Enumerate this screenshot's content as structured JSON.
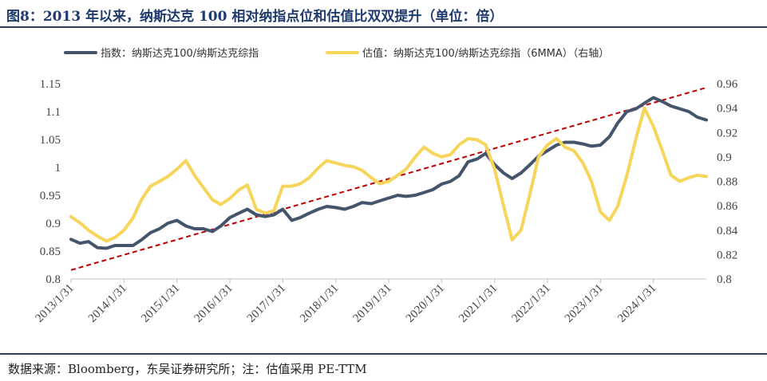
{
  "title": "图8：2013 年以来，纳斯达克 100 相对纳指点位和估值比双双提升（单位：倍）",
  "source": "数据来源：Bloomberg，东吴证券研究所；注：估值采用 PE-TTM",
  "chart_data": {
    "type": "line",
    "y_left": {
      "min": 0.8,
      "max": 1.15,
      "ticks": [
        "0.8",
        "0.85",
        "0.9",
        "0.95",
        "1",
        "1.05",
        "1.1",
        "1.15"
      ]
    },
    "y_right": {
      "min": 0.8,
      "max": 0.96,
      "ticks": [
        "0.8",
        "0.82",
        "0.84",
        "0.86",
        "0.88",
        "0.9",
        "0.92",
        "0.94",
        "0.96"
      ]
    },
    "x_range": [
      2013.0,
      2025.0
    ],
    "x_ticks": [
      "2013/1/31",
      "2014/1/31",
      "2015/1/31",
      "2016/1/31",
      "2017/1/31",
      "2018/1/31",
      "2019/1/31",
      "2020/1/31",
      "2021/1/31",
      "2022/1/31",
      "2023/1/31",
      "2024/1/31"
    ],
    "grid": false,
    "legend_position": "top",
    "series": [
      {
        "name": "指数：纳斯达克100/纳斯达克综指",
        "axis": "left",
        "color": "#44546a",
        "points": [
          [
            2013.0,
            0.871
          ],
          [
            2013.17,
            0.864
          ],
          [
            2013.33,
            0.867
          ],
          [
            2013.5,
            0.856
          ],
          [
            2013.67,
            0.855
          ],
          [
            2013.83,
            0.86
          ],
          [
            2014.0,
            0.86
          ],
          [
            2014.17,
            0.86
          ],
          [
            2014.33,
            0.87
          ],
          [
            2014.5,
            0.883
          ],
          [
            2014.67,
            0.89
          ],
          [
            2014.83,
            0.9
          ],
          [
            2015.0,
            0.905
          ],
          [
            2015.17,
            0.895
          ],
          [
            2015.33,
            0.89
          ],
          [
            2015.5,
            0.89
          ],
          [
            2015.67,
            0.885
          ],
          [
            2015.83,
            0.895
          ],
          [
            2016.0,
            0.91
          ],
          [
            2016.17,
            0.918
          ],
          [
            2016.33,
            0.925
          ],
          [
            2016.5,
            0.915
          ],
          [
            2016.67,
            0.912
          ],
          [
            2016.83,
            0.915
          ],
          [
            2017.0,
            0.925
          ],
          [
            2017.17,
            0.905
          ],
          [
            2017.33,
            0.91
          ],
          [
            2017.5,
            0.918
          ],
          [
            2017.67,
            0.925
          ],
          [
            2017.83,
            0.93
          ],
          [
            2018.0,
            0.928
          ],
          [
            2018.17,
            0.925
          ],
          [
            2018.33,
            0.93
          ],
          [
            2018.5,
            0.937
          ],
          [
            2018.67,
            0.935
          ],
          [
            2018.83,
            0.94
          ],
          [
            2019.0,
            0.945
          ],
          [
            2019.17,
            0.95
          ],
          [
            2019.33,
            0.948
          ],
          [
            2019.5,
            0.95
          ],
          [
            2019.67,
            0.955
          ],
          [
            2019.83,
            0.96
          ],
          [
            2020.0,
            0.97
          ],
          [
            2020.17,
            0.975
          ],
          [
            2020.33,
            0.985
          ],
          [
            2020.5,
            1.01
          ],
          [
            2020.67,
            1.015
          ],
          [
            2020.83,
            1.025
          ],
          [
            2021.0,
            1.005
          ],
          [
            2021.17,
            0.99
          ],
          [
            2021.33,
            0.98
          ],
          [
            2021.5,
            0.99
          ],
          [
            2021.67,
            1.005
          ],
          [
            2021.83,
            1.02
          ],
          [
            2022.0,
            1.03
          ],
          [
            2022.17,
            1.04
          ],
          [
            2022.33,
            1.045
          ],
          [
            2022.5,
            1.045
          ],
          [
            2022.67,
            1.042
          ],
          [
            2022.83,
            1.038
          ],
          [
            2023.0,
            1.04
          ],
          [
            2023.17,
            1.055
          ],
          [
            2023.33,
            1.08
          ],
          [
            2023.5,
            1.1
          ],
          [
            2023.67,
            1.105
          ],
          [
            2023.83,
            1.115
          ],
          [
            2024.0,
            1.125
          ],
          [
            2024.17,
            1.118
          ],
          [
            2024.33,
            1.11
          ],
          [
            2024.5,
            1.105
          ],
          [
            2024.67,
            1.1
          ],
          [
            2024.83,
            1.09
          ],
          [
            2025.0,
            1.085
          ]
        ]
      },
      {
        "name": "估值：纳斯达克100/纳斯达克综指（6MMA）（右轴）",
        "axis": "right",
        "color": "#f7d55a",
        "points": [
          [
            2013.0,
            0.851
          ],
          [
            2013.17,
            0.846
          ],
          [
            2013.33,
            0.84
          ],
          [
            2013.5,
            0.835
          ],
          [
            2013.67,
            0.831
          ],
          [
            2013.83,
            0.834
          ],
          [
            2014.0,
            0.84
          ],
          [
            2014.17,
            0.85
          ],
          [
            2014.33,
            0.865
          ],
          [
            2014.5,
            0.876
          ],
          [
            2014.67,
            0.88
          ],
          [
            2014.83,
            0.884
          ],
          [
            2015.0,
            0.89
          ],
          [
            2015.17,
            0.897
          ],
          [
            2015.33,
            0.885
          ],
          [
            2015.5,
            0.875
          ],
          [
            2015.67,
            0.865
          ],
          [
            2015.83,
            0.861
          ],
          [
            2016.0,
            0.866
          ],
          [
            2016.17,
            0.873
          ],
          [
            2016.33,
            0.877
          ],
          [
            2016.5,
            0.857
          ],
          [
            2016.67,
            0.854
          ],
          [
            2016.83,
            0.856
          ],
          [
            2017.0,
            0.876
          ],
          [
            2017.17,
            0.876
          ],
          [
            2017.33,
            0.878
          ],
          [
            2017.5,
            0.883
          ],
          [
            2017.67,
            0.891
          ],
          [
            2017.83,
            0.897
          ],
          [
            2018.0,
            0.895
          ],
          [
            2018.17,
            0.893
          ],
          [
            2018.33,
            0.892
          ],
          [
            2018.5,
            0.889
          ],
          [
            2018.67,
            0.883
          ],
          [
            2018.83,
            0.878
          ],
          [
            2019.0,
            0.88
          ],
          [
            2019.17,
            0.885
          ],
          [
            2019.33,
            0.89
          ],
          [
            2019.5,
            0.9
          ],
          [
            2019.67,
            0.908
          ],
          [
            2019.83,
            0.903
          ],
          [
            2020.0,
            0.9
          ],
          [
            2020.17,
            0.902
          ],
          [
            2020.33,
            0.91
          ],
          [
            2020.5,
            0.915
          ],
          [
            2020.67,
            0.914
          ],
          [
            2020.83,
            0.91
          ],
          [
            2021.0,
            0.89
          ],
          [
            2021.17,
            0.86
          ],
          [
            2021.33,
            0.832
          ],
          [
            2021.5,
            0.84
          ],
          [
            2021.67,
            0.87
          ],
          [
            2021.83,
            0.9
          ],
          [
            2022.0,
            0.91
          ],
          [
            2022.17,
            0.915
          ],
          [
            2022.33,
            0.908
          ],
          [
            2022.5,
            0.905
          ],
          [
            2022.67,
            0.895
          ],
          [
            2022.83,
            0.88
          ],
          [
            2023.0,
            0.855
          ],
          [
            2023.17,
            0.848
          ],
          [
            2023.33,
            0.86
          ],
          [
            2023.5,
            0.885
          ],
          [
            2023.67,
            0.915
          ],
          [
            2023.83,
            0.94
          ],
          [
            2024.0,
            0.925
          ],
          [
            2024.17,
            0.905
          ],
          [
            2024.33,
            0.885
          ],
          [
            2024.5,
            0.88
          ],
          [
            2024.67,
            0.883
          ],
          [
            2024.83,
            0.885
          ],
          [
            2025.0,
            0.884
          ]
        ]
      }
    ],
    "trendline": {
      "axis": "left",
      "color": "#c00000",
      "style": "dashed",
      "from": [
        2013.0,
        0.816
      ],
      "to": [
        2025.0,
        1.143
      ]
    }
  }
}
